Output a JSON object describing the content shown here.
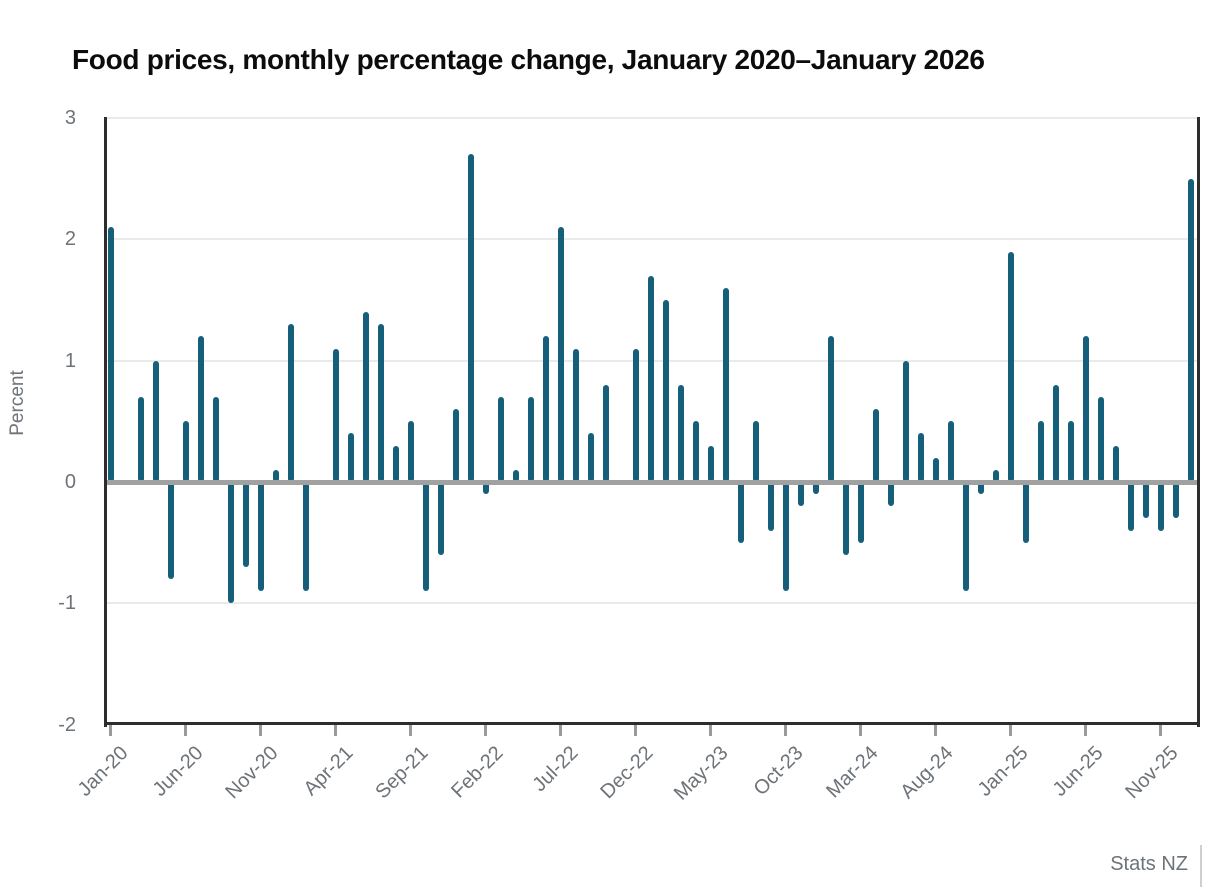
{
  "title": "Food prices, monthly percentage change, January 2020–January 2026",
  "source": "Stats NZ",
  "colors": {
    "bar": "#165F7A",
    "zero_line": "#A1A1A1",
    "gridline": "#E9EBEB",
    "axis_frame": "#2D2D2D",
    "tick_text": "#6D7378",
    "title_text": "#0C0C0C"
  },
  "chart_data": {
    "type": "bar",
    "title": "Food prices, monthly percentage change, January 2020–January 2026",
    "xlabel": "",
    "ylabel": "Percent",
    "ylim": [
      -2,
      3
    ],
    "yticks": [
      3,
      2,
      1,
      0,
      -1,
      -2
    ],
    "grid": "horizontal",
    "legend": "none",
    "source": "Stats NZ",
    "categories": [
      "Jan-20",
      "Feb-20",
      "Mar-20",
      "Apr-20",
      "May-20",
      "Jun-20",
      "Jul-20",
      "Aug-20",
      "Sep-20",
      "Oct-20",
      "Nov-20",
      "Dec-20",
      "Jan-21",
      "Feb-21",
      "Mar-21",
      "Apr-21",
      "May-21",
      "Jun-21",
      "Jul-21",
      "Aug-21",
      "Sep-21",
      "Oct-21",
      "Nov-21",
      "Dec-21",
      "Jan-22",
      "Feb-22",
      "Mar-22",
      "Apr-22",
      "May-22",
      "Jun-22",
      "Jul-22",
      "Aug-22",
      "Sep-22",
      "Oct-22",
      "Nov-22",
      "Dec-22",
      "Jan-23",
      "Feb-23",
      "Mar-23",
      "Apr-23",
      "May-23",
      "Jun-23",
      "Jul-23",
      "Aug-23",
      "Sep-23",
      "Oct-23",
      "Nov-23",
      "Dec-23",
      "Jan-24",
      "Feb-24",
      "Mar-24",
      "Apr-24",
      "May-24",
      "Jun-24",
      "Jul-24",
      "Aug-24",
      "Sep-24",
      "Oct-24",
      "Nov-24",
      "Dec-24",
      "Jan-25",
      "Feb-25",
      "Mar-25",
      "Apr-25",
      "May-25",
      "Jun-25",
      "Jul-25",
      "Aug-25",
      "Sep-25",
      "Oct-25",
      "Nov-25",
      "Dec-25",
      "Jan-26"
    ],
    "values": [
      2.1,
      0.0,
      0.7,
      1.0,
      -0.8,
      0.5,
      1.2,
      0.7,
      -1.0,
      -0.7,
      -0.9,
      0.1,
      1.3,
      -0.9,
      0.0,
      1.1,
      0.4,
      1.4,
      1.3,
      0.3,
      0.5,
      -0.9,
      -0.6,
      0.6,
      2.7,
      -0.1,
      0.7,
      0.1,
      0.7,
      1.2,
      2.1,
      1.1,
      0.4,
      0.8,
      0.0,
      1.1,
      1.7,
      1.5,
      0.8,
      0.5,
      0.3,
      1.6,
      -0.5,
      0.5,
      -0.4,
      -0.9,
      -0.2,
      -0.1,
      1.2,
      -0.6,
      -0.5,
      0.6,
      -0.2,
      1.0,
      0.4,
      0.2,
      0.5,
      -0.9,
      -0.1,
      0.1,
      1.9,
      -0.5,
      0.5,
      0.8,
      0.5,
      1.2,
      0.7,
      0.3,
      -0.4,
      -0.3,
      -0.4,
      -0.3,
      2.5
    ],
    "x_tick_labels": [
      "Jan-20",
      "Jun-20",
      "Nov-20",
      "Apr-21",
      "Sep-21",
      "Feb-22",
      "Jul-22",
      "Dec-22",
      "May-23",
      "Oct-23",
      "Mar-24",
      "Aug-24",
      "Jan-25",
      "Jun-25",
      "Nov-25"
    ],
    "x_tick_every_n_months": 5
  }
}
